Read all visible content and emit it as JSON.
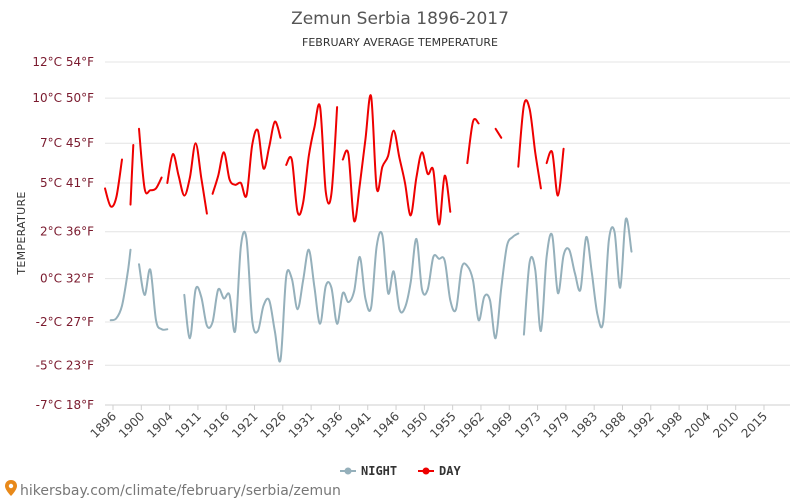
{
  "colors": {
    "night": "#95b0bb",
    "day": "#ee0000",
    "grid": "#e4e4e4",
    "axis": "#cfcfcf"
  },
  "source_text": "hikersbay.com/climate/february/serbia/zemun",
  "chart_data": {
    "type": "line",
    "title": "Zemun Serbia 1896-2017",
    "subtitle": "FEBRUARY AVERAGE TEMPERATURE",
    "ylabel": "TEMPERATURE",
    "ylim": [
      -7,
      12
    ],
    "y_ticks": [
      {
        "value": 12,
        "label": "12°C 54°F"
      },
      {
        "value": 10,
        "label": "10°C 50°F"
      },
      {
        "value": 7.5,
        "label": "7°C 45°F"
      },
      {
        "value": 5.3,
        "label": "5°C 41°F"
      },
      {
        "value": 2.6,
        "label": "2°C 36°F"
      },
      {
        "value": 0,
        "label": "0°C 32°F"
      },
      {
        "value": -2.4,
        "label": "-2°C 27°F"
      },
      {
        "value": -4.8,
        "label": "-5°C 23°F"
      },
      {
        "value": -7,
        "label": "-7°C 18°F"
      }
    ],
    "x_range": [
      1896,
      2017
    ],
    "x_ticks": [
      "1896",
      "1900",
      "1904",
      "1911",
      "1916",
      "1921",
      "1926",
      "1931",
      "1936",
      "1941",
      "1946",
      "1950",
      "1955",
      "1962",
      "1969",
      "1973",
      "1979",
      "1983",
      "1988",
      "1992",
      "1998",
      "2004",
      "2010",
      "2015"
    ],
    "legend_position": "bottom-center",
    "series": [
      {
        "name": "NIGHT",
        "segments": [
          [
            [
              1897,
              -2.3
            ],
            [
              1898,
              -2.2
            ],
            [
              1899,
              -1.5
            ],
            [
              1900,
              0.3
            ],
            [
              1900.5,
              1.6
            ]
          ],
          [
            [
              1902,
              0.8
            ],
            [
              1903,
              -0.9
            ],
            [
              1904,
              0.5
            ],
            [
              1905,
              -2.3
            ],
            [
              1906,
              -2.8
            ],
            [
              1907,
              -2.8
            ]
          ],
          [
            [
              1910,
              -0.9
            ],
            [
              1911,
              -3.3
            ],
            [
              1912,
              -0.6
            ],
            [
              1913,
              -1.0
            ],
            [
              1914,
              -2.6
            ],
            [
              1915,
              -2.4
            ],
            [
              1916,
              -0.6
            ],
            [
              1917,
              -1.1
            ],
            [
              1918,
              -0.9
            ],
            [
              1919,
              -2.9
            ],
            [
              1920,
              1.8
            ],
            [
              1921,
              2.2
            ],
            [
              1922,
              -2.3
            ],
            [
              1923,
              -2.9
            ],
            [
              1924,
              -1.5
            ],
            [
              1925,
              -1.2
            ],
            [
              1926,
              -2.9
            ],
            [
              1927,
              -4.5
            ],
            [
              1928,
              0.1
            ],
            [
              1929,
              0.0
            ],
            [
              1930,
              -1.7
            ],
            [
              1931,
              -0.1
            ],
            [
              1932,
              1.6
            ],
            [
              1933,
              -0.5
            ],
            [
              1934,
              -2.5
            ],
            [
              1935,
              -0.4
            ],
            [
              1936,
              -0.5
            ],
            [
              1937,
              -2.5
            ],
            [
              1938,
              -0.8
            ],
            [
              1939,
              -1.3
            ],
            [
              1940,
              -0.7
            ],
            [
              1941,
              1.2
            ],
            [
              1942,
              -1.1
            ],
            [
              1943,
              -1.6
            ],
            [
              1944,
              1.8
            ],
            [
              1945,
              2.4
            ],
            [
              1946,
              -0.8
            ],
            [
              1947,
              0.4
            ],
            [
              1948,
              -1.7
            ],
            [
              1949,
              -1.6
            ],
            [
              1950,
              -0.2
            ],
            [
              1951,
              2.2
            ],
            [
              1952,
              -0.6
            ],
            [
              1953,
              -0.6
            ],
            [
              1954,
              1.2
            ],
            [
              1955,
              1.1
            ],
            [
              1956,
              1.0
            ],
            [
              1957,
              -1.2
            ],
            [
              1958,
              -1.7
            ],
            [
              1959,
              0.6
            ],
            [
              1960,
              0.7
            ],
            [
              1961,
              -0.1
            ],
            [
              1962,
              -2.3
            ],
            [
              1963,
              -1.0
            ],
            [
              1964,
              -1.2
            ],
            [
              1965,
              -3.3
            ],
            [
              1966,
              -0.5
            ],
            [
              1967,
              1.8
            ],
            [
              1968,
              2.3
            ],
            [
              1969,
              2.5
            ]
          ],
          [
            [
              1970,
              -3.1
            ],
            [
              1971,
              0.9
            ],
            [
              1972,
              0.5
            ],
            [
              1973,
              -2.9
            ],
            [
              1974,
              1.2
            ],
            [
              1975,
              2.4
            ],
            [
              1976,
              -0.8
            ],
            [
              1977,
              1.3
            ],
            [
              1978,
              1.6
            ],
            [
              1979,
              0.3
            ],
            [
              1980,
              -0.6
            ],
            [
              1981,
              2.3
            ],
            [
              1982,
              0.3
            ],
            [
              1983,
              -2.0
            ],
            [
              1984,
              -2.4
            ],
            [
              1985,
              2.1
            ],
            [
              1986,
              2.6
            ],
            [
              1987,
              -0.5
            ],
            [
              1988,
              3.3
            ],
            [
              1989,
              1.5
            ]
          ]
        ]
      },
      {
        "name": "DAY",
        "segments": [
          [
            [
              1896,
              5.0
            ],
            [
              1897,
              4.0
            ],
            [
              1898,
              4.5
            ],
            [
              1899,
              6.6
            ]
          ],
          [
            [
              1900.5,
              4.1
            ],
            [
              1901,
              7.4
            ]
          ],
          [
            [
              1902,
              8.3
            ],
            [
              1903,
              5.0
            ],
            [
              1904,
              4.9
            ],
            [
              1905,
              5.0
            ],
            [
              1906,
              5.6
            ]
          ],
          [
            [
              1907,
              5.3
            ],
            [
              1908,
              6.9
            ],
            [
              1909,
              5.7
            ],
            [
              1910,
              4.6
            ],
            [
              1911,
              5.6
            ],
            [
              1912,
              7.5
            ],
            [
              1913,
              5.6
            ],
            [
              1914,
              3.6
            ]
          ],
          [
            [
              1915,
              4.7
            ],
            [
              1916,
              5.7
            ],
            [
              1917,
              7.0
            ],
            [
              1918,
              5.5
            ],
            [
              1919,
              5.2
            ],
            [
              1920,
              5.3
            ],
            [
              1921,
              4.6
            ],
            [
              1922,
              7.4
            ],
            [
              1923,
              8.2
            ],
            [
              1924,
              6.1
            ],
            [
              1925,
              7.3
            ],
            [
              1926,
              8.7
            ],
            [
              1927,
              7.8
            ]
          ],
          [
            [
              1928,
              6.3
            ],
            [
              1929,
              6.6
            ],
            [
              1930,
              3.7
            ],
            [
              1931,
              4.2
            ],
            [
              1932,
              6.8
            ],
            [
              1933,
              8.4
            ],
            [
              1934,
              9.5
            ],
            [
              1935,
              4.8
            ],
            [
              1936,
              4.7
            ],
            [
              1937,
              9.5
            ]
          ],
          [
            [
              1938,
              6.6
            ],
            [
              1939,
              6.9
            ],
            [
              1940,
              3.2
            ],
            [
              1941,
              5.2
            ],
            [
              1942,
              7.7
            ],
            [
              1943,
              10.1
            ],
            [
              1944,
              5.0
            ],
            [
              1945,
              6.2
            ],
            [
              1946,
              6.8
            ],
            [
              1947,
              8.2
            ],
            [
              1948,
              6.7
            ],
            [
              1949,
              5.3
            ],
            [
              1950,
              3.5
            ],
            [
              1951,
              5.6
            ],
            [
              1952,
              7.0
            ],
            [
              1953,
              5.8
            ],
            [
              1954,
              6.0
            ],
            [
              1955,
              3.0
            ],
            [
              1956,
              5.7
            ],
            [
              1957,
              3.7
            ]
          ],
          [
            [
              1960,
              6.4
            ],
            [
              1961,
              8.7
            ],
            [
              1962,
              8.6
            ]
          ],
          [
            [
              1965,
              8.3
            ],
            [
              1966,
              7.8
            ]
          ],
          [
            [
              1969,
              6.2
            ],
            [
              1970,
              9.6
            ],
            [
              1971,
              9.4
            ],
            [
              1972,
              7.0
            ],
            [
              1973,
              5.0
            ]
          ],
          [
            [
              1974,
              6.4
            ],
            [
              1975,
              7.0
            ],
            [
              1976,
              4.6
            ],
            [
              1977,
              7.2
            ]
          ]
        ]
      }
    ]
  }
}
